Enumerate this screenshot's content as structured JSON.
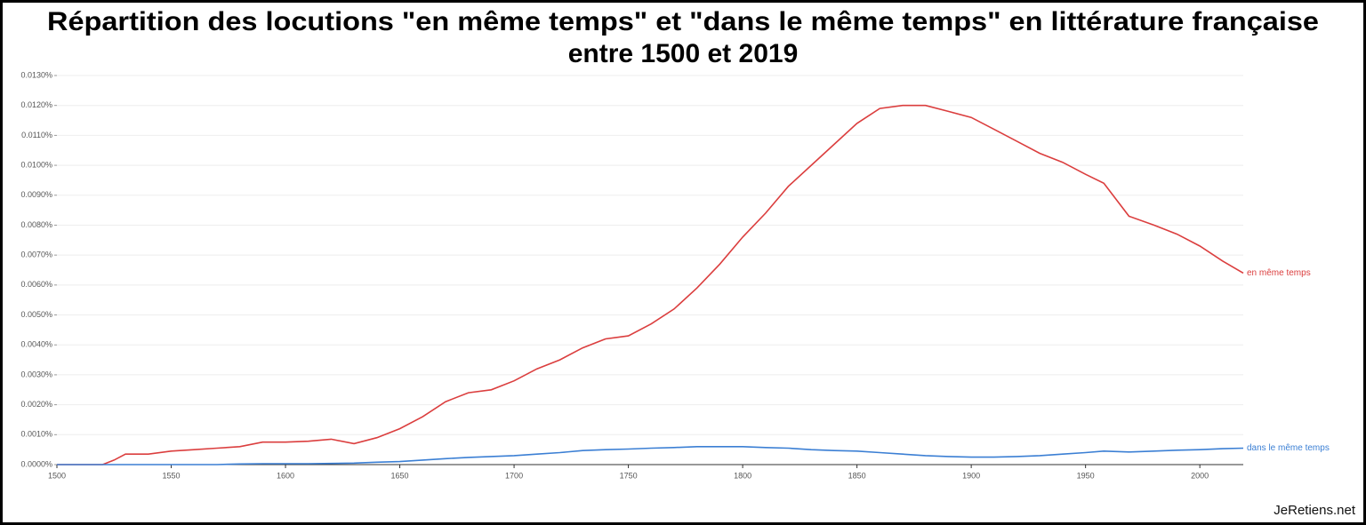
{
  "chart_data": {
    "type": "line",
    "title": [
      "Répartition des locutions \"en même temps\" et \"dans le même temps\" en littérature française",
      "entre 1500 et 2019"
    ],
    "watermark": "JeRetiens.net",
    "x": [
      1500,
      1510,
      1520,
      1525,
      1530,
      1540,
      1550,
      1560,
      1570,
      1580,
      1590,
      1600,
      1610,
      1620,
      1630,
      1640,
      1650,
      1660,
      1670,
      1680,
      1690,
      1700,
      1710,
      1720,
      1730,
      1740,
      1750,
      1760,
      1770,
      1780,
      1790,
      1800,
      1810,
      1820,
      1830,
      1840,
      1850,
      1860,
      1870,
      1880,
      1890,
      1900,
      1910,
      1920,
      1930,
      1940,
      1950,
      1958,
      1969,
      1980,
      1990,
      2000,
      2010,
      2019
    ],
    "series": [
      {
        "name": "en même temps",
        "color": "#db3e3e",
        "values": [
          0,
          0,
          0,
          0.00015,
          0.00035,
          0.00035,
          0.00045,
          0.0005,
          0.00055,
          0.0006,
          0.00075,
          0.00075,
          0.00078,
          0.00085,
          0.0007,
          0.0009,
          0.0012,
          0.0016,
          0.0021,
          0.0024,
          0.0025,
          0.0028,
          0.0032,
          0.0035,
          0.0039,
          0.0042,
          0.0043,
          0.0047,
          0.0052,
          0.0059,
          0.0067,
          0.0076,
          0.0084,
          0.0093,
          0.01,
          0.0107,
          0.0114,
          0.0119,
          0.012,
          0.012,
          0.0118,
          0.0116,
          0.0112,
          0.0108,
          0.0104,
          0.0101,
          0.0097,
          0.0094,
          0.0083,
          0.008,
          0.0077,
          0.0073,
          0.0068,
          0.0064
        ]
      },
      {
        "name": "dans le même temps",
        "color": "#3b7fd4",
        "values": [
          0,
          0,
          0,
          0,
          0,
          0,
          0,
          0,
          0,
          2e-05,
          3e-05,
          3e-05,
          3e-05,
          4e-05,
          5e-05,
          8e-05,
          0.0001,
          0.00015,
          0.0002,
          0.00024,
          0.00027,
          0.0003,
          0.00035,
          0.0004,
          0.00047,
          0.0005,
          0.00052,
          0.00055,
          0.00057,
          0.0006,
          0.0006,
          0.0006,
          0.00057,
          0.00055,
          0.0005,
          0.00047,
          0.00045,
          0.0004,
          0.00035,
          0.0003,
          0.00027,
          0.00025,
          0.00025,
          0.00027,
          0.0003,
          0.00035,
          0.0004,
          0.00045,
          0.00042,
          0.00045,
          0.00048,
          0.0005,
          0.00053,
          0.00055
        ]
      }
    ],
    "xlim": [
      1500,
      2019
    ],
    "xticks": [
      1500,
      1550,
      1600,
      1650,
      1700,
      1750,
      1800,
      1850,
      1900,
      1950,
      2000
    ],
    "ylim": [
      0,
      0.013
    ],
    "yticks": [
      {
        "value": 0,
        "label": "0.0000%"
      },
      {
        "value": 0.001,
        "label": "0.0010%"
      },
      {
        "value": 0.002,
        "label": "0.0020%"
      },
      {
        "value": 0.003,
        "label": "0.0030%"
      },
      {
        "value": 0.004,
        "label": "0.0040%"
      },
      {
        "value": 0.005,
        "label": "0.0050%"
      },
      {
        "value": 0.006,
        "label": "0.0060%"
      },
      {
        "value": 0.007,
        "label": "0.0070%"
      },
      {
        "value": 0.008,
        "label": "0.0080%"
      },
      {
        "value": 0.009,
        "label": "0.0090%"
      },
      {
        "value": 0.01,
        "label": "0.0100%"
      },
      {
        "value": 0.011,
        "label": "0.0110%"
      },
      {
        "value": 0.012,
        "label": "0.0120%"
      },
      {
        "value": 0.013,
        "label": "0.0130%"
      }
    ],
    "grid": true
  }
}
